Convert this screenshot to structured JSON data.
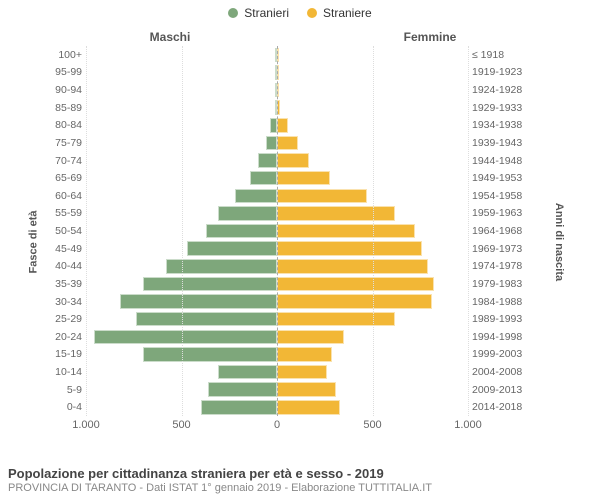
{
  "legend": {
    "male": {
      "label": "Stranieri",
      "color": "#7ea77b"
    },
    "female": {
      "label": "Straniere",
      "color": "#f2b736"
    }
  },
  "headers": {
    "left": "Maschi",
    "right": "Femmine"
  },
  "y_left_label": "Fasce di età",
  "y_right_label": "Anni di nascita",
  "chart": {
    "type": "population-pyramid",
    "x_max": 1000,
    "x_ticks": [
      1000,
      500,
      0,
      500,
      1000
    ],
    "x_tick_labels": [
      "1.000",
      "500",
      "0",
      "500",
      "1.000"
    ],
    "male_color": "#7ea77b",
    "female_color": "#f2b736",
    "background_color": "#ffffff",
    "grid_color": "#dddddd",
    "bar_gap_pct": 18,
    "rows": [
      {
        "age": "100+",
        "birth": "≤ 1918",
        "m": 0,
        "f": 1
      },
      {
        "age": "95-99",
        "birth": "1919-1923",
        "m": 1,
        "f": 3
      },
      {
        "age": "90-94",
        "birth": "1924-1928",
        "m": 3,
        "f": 8
      },
      {
        "age": "85-89",
        "birth": "1929-1933",
        "m": 8,
        "f": 18
      },
      {
        "age": "80-84",
        "birth": "1934-1938",
        "m": 35,
        "f": 60
      },
      {
        "age": "75-79",
        "birth": "1939-1943",
        "m": 60,
        "f": 110
      },
      {
        "age": "70-74",
        "birth": "1944-1948",
        "m": 100,
        "f": 170
      },
      {
        "age": "65-69",
        "birth": "1949-1953",
        "m": 140,
        "f": 280
      },
      {
        "age": "60-64",
        "birth": "1954-1958",
        "m": 220,
        "f": 470
      },
      {
        "age": "55-59",
        "birth": "1959-1963",
        "m": 310,
        "f": 620
      },
      {
        "age": "50-54",
        "birth": "1964-1968",
        "m": 370,
        "f": 720
      },
      {
        "age": "45-49",
        "birth": "1969-1973",
        "m": 470,
        "f": 760
      },
      {
        "age": "40-44",
        "birth": "1974-1978",
        "m": 580,
        "f": 790
      },
      {
        "age": "35-39",
        "birth": "1979-1983",
        "m": 700,
        "f": 820
      },
      {
        "age": "30-34",
        "birth": "1984-1988",
        "m": 820,
        "f": 810
      },
      {
        "age": "25-29",
        "birth": "1989-1993",
        "m": 740,
        "f": 620
      },
      {
        "age": "20-24",
        "birth": "1994-1998",
        "m": 960,
        "f": 350
      },
      {
        "age": "15-19",
        "birth": "1999-2003",
        "m": 700,
        "f": 290
      },
      {
        "age": "10-14",
        "birth": "2004-2008",
        "m": 310,
        "f": 260
      },
      {
        "age": "5-9",
        "birth": "2009-2013",
        "m": 360,
        "f": 310
      },
      {
        "age": "0-4",
        "birth": "2014-2018",
        "m": 400,
        "f": 330
      }
    ]
  },
  "footer": {
    "title": "Popolazione per cittadinanza straniera per età e sesso - 2019",
    "subtitle": "PROVINCIA DI TARANTO - Dati ISTAT 1° gennaio 2019 - Elaborazione TUTTITALIA.IT"
  }
}
